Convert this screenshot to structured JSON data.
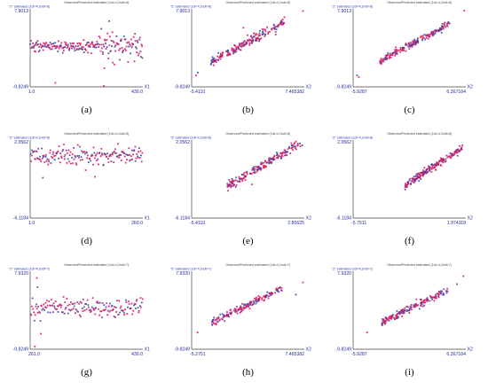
{
  "chart_data": [
    {
      "id": "a",
      "type": "scatter",
      "caption": "(a)",
      "title": "Observed/Predicted estimated (1dt=4,2ndt=8)",
      "ylabel": "\"Z\" estimated (1dt=4,2ndt=8)",
      "xaxis_name": "X1",
      "xlim": [
        1.0,
        430.0
      ],
      "ylim": [
        -9.8249,
        7.9013
      ],
      "x_ticks": [
        "1.0",
        "430.0"
      ],
      "y_ticks": [
        "7.9013",
        "-9.8249"
      ],
      "pattern": "time",
      "n": 220,
      "center": -0.6,
      "spread": 1.2,
      "shift_at": 260,
      "spread_after": 2.6,
      "outliers": [
        [
          97,
          -8.9
        ],
        [
          282,
          -9.6
        ],
        [
          302,
          5.1
        ],
        [
          283,
          -5.6
        ]
      ],
      "colors": [
        "#d81b60",
        "#3949ab"
      ]
    },
    {
      "id": "b",
      "type": "scatter",
      "caption": "(b)",
      "title": "Observed/Predicted estimated (1dt=4,2ndt=8)",
      "ylabel": "\"Z\" estimated (1dt=4,2ndt=8)",
      "xaxis_name": "X2",
      "xlim": [
        -5.411,
        7.465382
      ],
      "ylim": [
        -9.8249,
        7.9013
      ],
      "x_ticks": [
        "-5.4110",
        "7.465382"
      ],
      "y_ticks": [
        "7.9013",
        "-9.8249"
      ],
      "pattern": "linear",
      "n": 200,
      "slope": 1.08,
      "intercept": -0.7,
      "xrange": [
        -3.2,
        5.2
      ],
      "noise": 0.9,
      "outliers": [
        [
          7.3,
          7.4
        ],
        [
          -4.7,
          -6.6
        ],
        [
          -4.9,
          -7.2
        ],
        [
          0.5,
          3.6
        ]
      ],
      "colors": [
        "#d81b60",
        "#3949ab"
      ]
    },
    {
      "id": "c",
      "type": "scatter",
      "caption": "(c)",
      "title": "Observed/Predicted estimated (1dt=4,2ndt=8)",
      "ylabel": "\"Z\" estimated (1dt=4,2ndt=8)",
      "xaxis_name": "X2",
      "xlim": [
        -5.9287,
        6.367104
      ],
      "ylim": [
        -9.8249,
        7.9013
      ],
      "x_ticks": [
        "-5.9287",
        "6.367104"
      ],
      "y_ticks": [
        "7.9013",
        "-9.8249"
      ],
      "pattern": "linear",
      "n": 200,
      "slope": 1.1,
      "intercept": -0.6,
      "xrange": [
        -3.0,
        4.6
      ],
      "noise": 0.7,
      "outliers": [
        [
          6.2,
          7.5
        ],
        [
          -5.5,
          -7.2
        ],
        [
          -5.3,
          -7.6
        ]
      ],
      "colors": [
        "#d81b60",
        "#3949ab"
      ]
    },
    {
      "id": "d",
      "type": "scatter",
      "caption": "(d)",
      "title": "Observed/Predicted estimated (1dt=4,2ndt=8)",
      "ylabel": "\"Z\" estimated (1dt=4,2ndt=8)",
      "xaxis_name": "X1",
      "xlim": [
        1.0,
        260.0
      ],
      "ylim": [
        -6.1184,
        2.0562
      ],
      "x_ticks": [
        "1.0",
        "260.0"
      ],
      "y_ticks": [
        "2.0562",
        "-6.1184"
      ],
      "pattern": "time",
      "n": 180,
      "center": 0.4,
      "spread": 0.9,
      "outliers": [
        [
          30,
          -1.9
        ],
        [
          150,
          -1.8
        ]
      ],
      "colors": [
        "#d81b60",
        "#3949ab"
      ]
    },
    {
      "id": "e",
      "type": "scatter",
      "caption": "(e)",
      "title": "Observed/Predicted estimated (1dt=4,2ndt=8)",
      "ylabel": "\"Z\" estimated (1dt=4,2ndt=8)",
      "xaxis_name": "X2",
      "xlim": [
        -5.411,
        2.85625
      ],
      "ylim": [
        -6.1184,
        2.0562
      ],
      "x_ticks": [
        "-5.4110",
        "2.85625"
      ],
      "y_ticks": [
        "2.0562",
        "-6.1184"
      ],
      "pattern": "linear",
      "n": 200,
      "slope": 0.85,
      "intercept": -0.4,
      "xrange": [
        -2.8,
        2.6
      ],
      "noise": 0.45,
      "outliers": [
        [
          -1.0,
          -2.6
        ],
        [
          2.7,
          1.5
        ]
      ],
      "colors": [
        "#d81b60",
        "#3949ab"
      ]
    },
    {
      "id": "f",
      "type": "scatter",
      "caption": "(f)",
      "title": "Observed/Predicted estimated (1dt=4,2ndt=8)",
      "ylabel": "\"Z\" estimated (1dt=4,2ndt=8)",
      "xaxis_name": "X2",
      "xlim": [
        -5.7511,
        1.974118
      ],
      "ylim": [
        -6.1184,
        2.0562
      ],
      "x_ticks": [
        "-5.7511",
        "1.974118"
      ],
      "y_ticks": [
        "2.0562",
        "-6.1184"
      ],
      "pattern": "linear",
      "n": 200,
      "slope": 1.0,
      "intercept": -0.5,
      "xrange": [
        -2.2,
        1.8
      ],
      "noise": 0.35,
      "outliers": [
        [
          -1.8,
          -2.6
        ]
      ],
      "colors": [
        "#d81b60",
        "#3949ab"
      ]
    },
    {
      "id": "g",
      "type": "scatter",
      "caption": "(g)",
      "title": "Observed/Predicted estimated (1dt=4,2ndt=7)",
      "ylabel": "\"Z\" estimated (1dt=4,2ndt=7)",
      "xaxis_name": "X1",
      "xlim": [
        261.0,
        430.0
      ],
      "ylim": [
        -9.8249,
        7.932
      ],
      "x_ticks": [
        "261.0",
        "430.0"
      ],
      "y_ticks": [
        "7.9320",
        "-9.8249"
      ],
      "pattern": "time",
      "n": 170,
      "center": -0.4,
      "spread": 2.0,
      "outliers": [
        [
          271,
          6.4
        ],
        [
          272,
          4.3
        ],
        [
          268,
          -9.2
        ],
        [
          277,
          -6.3
        ]
      ],
      "colors": [
        "#d81b60",
        "#3949ab"
      ]
    },
    {
      "id": "h",
      "type": "scatter",
      "caption": "(h)",
      "title": "Observed/Predicted estimated (1dt=4,2ndt=7)",
      "ylabel": "\"Z\" estimated (1dt=4,2ndt=7)",
      "xaxis_name": "X2",
      "xlim": [
        -5.2751,
        7.465382
      ],
      "ylim": [
        -9.8249,
        7.932
      ],
      "x_ticks": [
        "-5.2751",
        "7.465382"
      ],
      "y_ticks": [
        "7.9320",
        "-9.8249"
      ],
      "pattern": "linear",
      "n": 170,
      "slope": 1.0,
      "intercept": -0.8,
      "xrange": [
        -3.0,
        5.0
      ],
      "noise": 0.8,
      "outliers": [
        [
          7.3,
          5.4
        ],
        [
          6.5,
          2.6
        ],
        [
          -4.6,
          -6.0
        ]
      ],
      "colors": [
        "#d81b60",
        "#3949ab"
      ]
    },
    {
      "id": "i",
      "type": "scatter",
      "caption": "(i)",
      "title": "Observed/Predicted estimated (1dt=4,2ndt=7)",
      "ylabel": "\"Z\" estimated (1dt=4,2ndt=7)",
      "xaxis_name": "X2",
      "xlim": [
        -5.9287,
        6.367104
      ],
      "ylim": [
        -9.8249,
        7.932
      ],
      "x_ticks": [
        "-5.9287",
        "6.367104"
      ],
      "y_ticks": [
        "7.9320",
        "-9.8249"
      ],
      "pattern": "linear",
      "n": 170,
      "slope": 1.05,
      "intercept": -0.8,
      "xrange": [
        -2.8,
        4.4
      ],
      "noise": 0.75,
      "outliers": [
        [
          6.1,
          6.8
        ],
        [
          5.4,
          5.0
        ],
        [
          -4.4,
          -6.0
        ]
      ],
      "colors": [
        "#d81b60",
        "#3949ab"
      ]
    }
  ]
}
